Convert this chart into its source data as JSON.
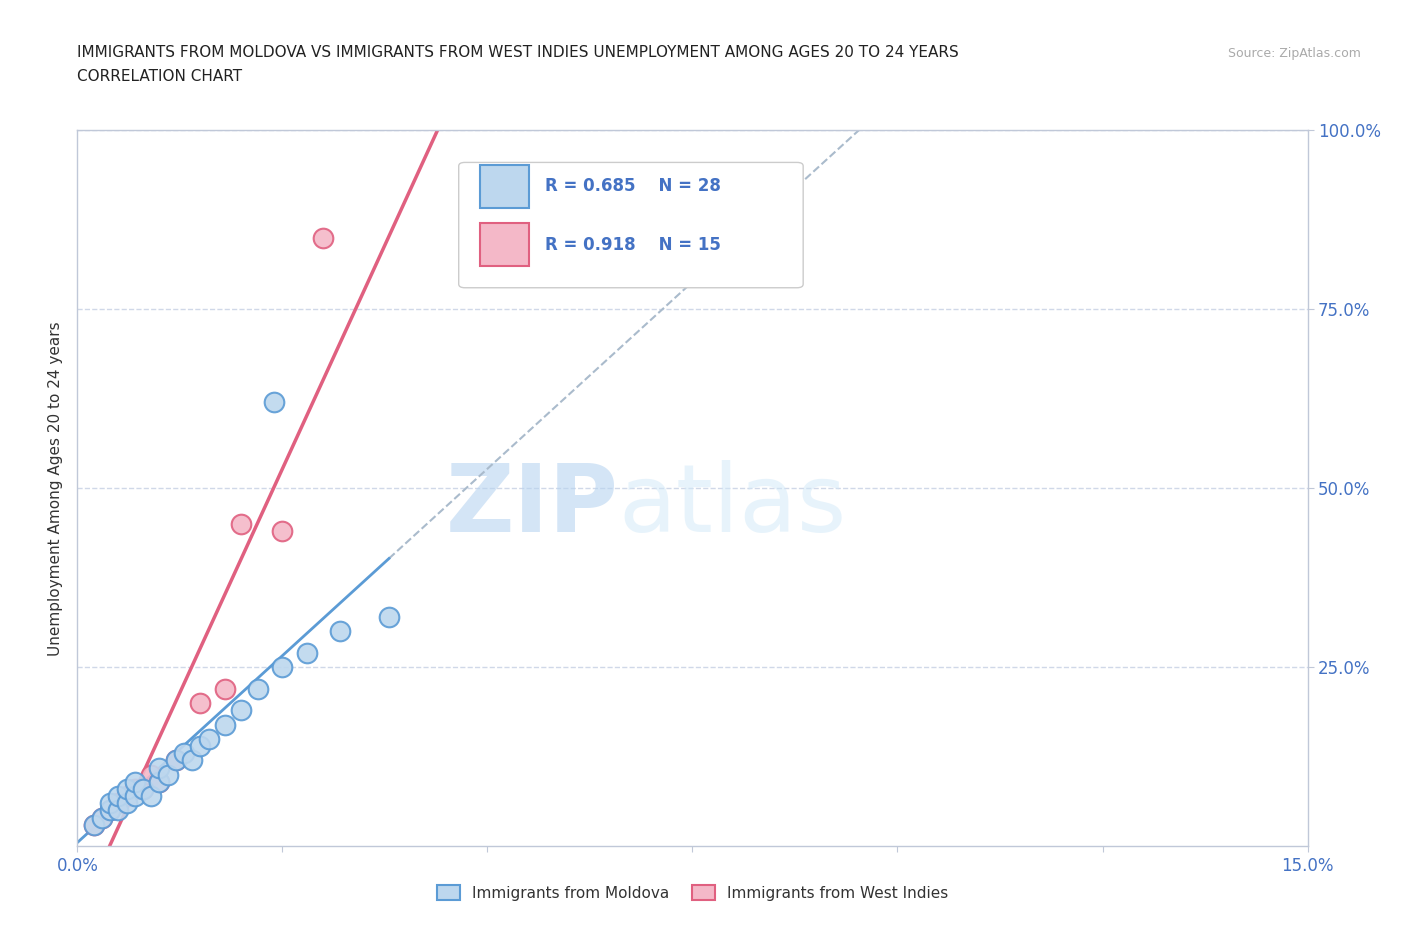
{
  "title_line1": "IMMIGRANTS FROM MOLDOVA VS IMMIGRANTS FROM WEST INDIES UNEMPLOYMENT AMONG AGES 20 TO 24 YEARS",
  "title_line2": "CORRELATION CHART",
  "source_text": "Source: ZipAtlas.com",
  "ylabel": "Unemployment Among Ages 20 to 24 years",
  "xlim": [
    0.0,
    0.15
  ],
  "ylim": [
    0.0,
    1.0
  ],
  "xticks": [
    0.0,
    0.025,
    0.05,
    0.075,
    0.1,
    0.125,
    0.15
  ],
  "xticklabels": [
    "0.0%",
    "",
    "",
    "",
    "",
    "",
    "15.0%"
  ],
  "yticks": [
    0.25,
    0.5,
    0.75,
    1.0
  ],
  "yticklabels": [
    "25.0%",
    "50.0%",
    "75.0%",
    "100.0%"
  ],
  "moldova_color": "#5b9bd5",
  "moldova_color_fill": "#bdd7ee",
  "west_indies_color": "#e06080",
  "west_indies_color_fill": "#f4b8c8",
  "moldova_R": 0.685,
  "moldova_N": 28,
  "west_indies_R": 0.918,
  "west_indies_N": 15,
  "legend_text_color": "#4472c4",
  "watermark_zip": "ZIP",
  "watermark_atlas": "atlas",
  "moldova_x": [
    0.002,
    0.003,
    0.004,
    0.004,
    0.005,
    0.005,
    0.006,
    0.006,
    0.007,
    0.007,
    0.008,
    0.009,
    0.01,
    0.01,
    0.011,
    0.012,
    0.013,
    0.014,
    0.015,
    0.016,
    0.018,
    0.02,
    0.022,
    0.025,
    0.028,
    0.032,
    0.038,
    0.024
  ],
  "moldova_y": [
    0.03,
    0.04,
    0.05,
    0.06,
    0.05,
    0.07,
    0.06,
    0.08,
    0.07,
    0.09,
    0.08,
    0.07,
    0.09,
    0.11,
    0.1,
    0.12,
    0.13,
    0.12,
    0.14,
    0.15,
    0.17,
    0.19,
    0.22,
    0.25,
    0.27,
    0.3,
    0.32,
    0.62
  ],
  "west_indies_x": [
    0.002,
    0.003,
    0.004,
    0.005,
    0.006,
    0.007,
    0.008,
    0.009,
    0.01,
    0.012,
    0.015,
    0.018,
    0.02,
    0.025,
    0.03
  ],
  "west_indies_y": [
    0.03,
    0.04,
    0.05,
    0.06,
    0.07,
    0.08,
    0.08,
    0.1,
    0.09,
    0.12,
    0.2,
    0.22,
    0.45,
    0.44,
    0.85
  ],
  "background_color": "#ffffff",
  "grid_color": "#d0d8e8",
  "tick_color": "#4472c4",
  "axis_color": "#c0c8d8"
}
